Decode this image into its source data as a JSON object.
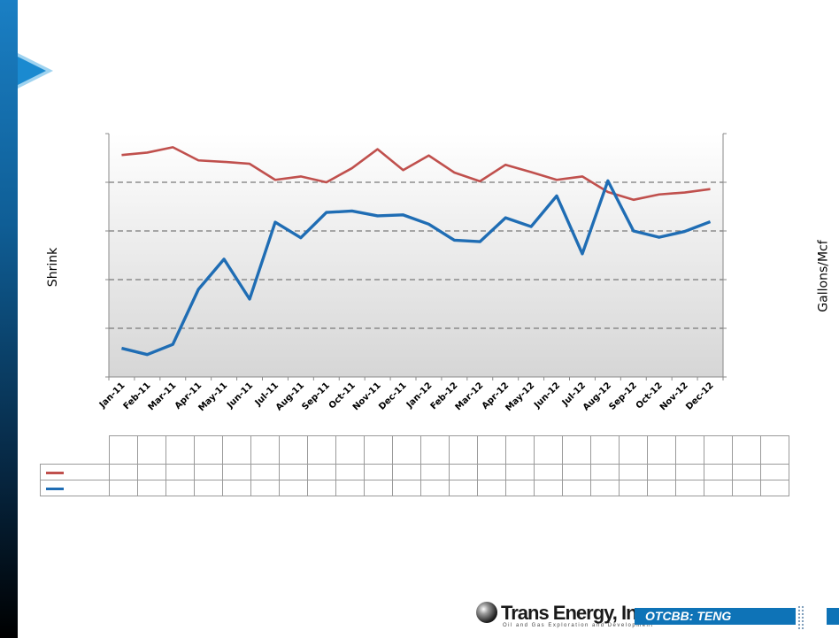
{
  "y_left_label": "Shrink",
  "y_right_label": "Gallons/Mcf",
  "footer": {
    "company": "Trans Energy, Inc.",
    "tagline": "Oil and Gas Exploration and Development",
    "ticker": "OTCBB: TENG"
  },
  "colors": {
    "shrink": "#c0504d",
    "gallons": "#1f6db4",
    "accent": "#0e73b7"
  },
  "chart_data": {
    "type": "line",
    "categories": [
      "Jan-11",
      "Feb-11",
      "Mar-11",
      "Apr-11",
      "May-11",
      "Jun-11",
      "Jul-11",
      "Aug-11",
      "Sep-11",
      "Oct-11",
      "Nov-11",
      "Dec-11",
      "Jan-12",
      "Feb-12",
      "Mar-12",
      "Apr-12",
      "May-12",
      "Jun-12",
      "Jul-12",
      "Aug-12",
      "Sep-12",
      "Oct-12",
      "Nov-12",
      "Dec-12"
    ],
    "ylabel": "Shrink",
    "y2label": "Gallons/Mcf",
    "ylim": [
      0,
      5
    ],
    "grid": true,
    "series": [
      {
        "values": [
          4.56,
          4.61,
          4.72,
          4.45,
          4.42,
          4.38,
          4.05,
          4.12,
          4.0,
          4.29,
          4.68,
          4.25,
          4.55,
          4.2,
          4.02,
          4.36,
          4.21,
          4.05,
          4.12,
          3.8,
          3.64,
          3.75,
          3.79,
          3.86
        ]
      },
      {
        "values": [
          0.59,
          0.46,
          0.67,
          1.8,
          2.42,
          1.6,
          3.18,
          2.86,
          3.38,
          3.41,
          3.31,
          3.33,
          3.14,
          2.81,
          2.78,
          3.27,
          3.09,
          3.72,
          2.53,
          4.03,
          3.0,
          2.87,
          2.99,
          3.19
        ]
      }
    ]
  }
}
